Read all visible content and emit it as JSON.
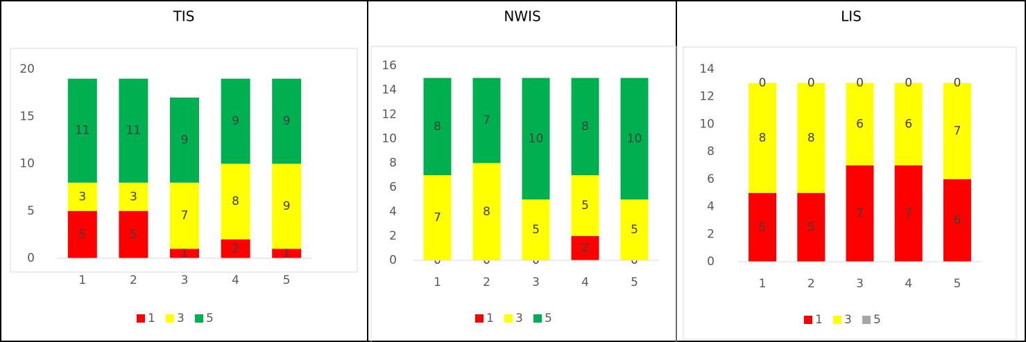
{
  "chart_data": [
    {
      "type": "bar",
      "stacked": true,
      "title": "TIS",
      "categories": [
        "1",
        "2",
        "3",
        "4",
        "5"
      ],
      "series": [
        {
          "name": "1",
          "color": "#ff0000",
          "values": [
            5,
            5,
            1,
            2,
            1
          ]
        },
        {
          "name": "3",
          "color": "#ffff00",
          "values": [
            3,
            3,
            7,
            8,
            9
          ]
        },
        {
          "name": "5",
          "color": "#00b050",
          "values": [
            11,
            11,
            9,
            9,
            9
          ]
        }
      ],
      "ylim": [
        0,
        20
      ],
      "yticks": [
        0,
        5,
        10,
        15,
        20
      ],
      "grid": false,
      "legend": "bottom"
    },
    {
      "type": "bar",
      "stacked": true,
      "title": "NWIS",
      "categories": [
        "1",
        "2",
        "3",
        "4",
        "5"
      ],
      "series": [
        {
          "name": "1",
          "color": "#ff0000",
          "values": [
            0,
            0,
            0,
            2,
            0
          ]
        },
        {
          "name": "3",
          "color": "#ffff00",
          "values": [
            7,
            8,
            5,
            5,
            5
          ]
        },
        {
          "name": "5",
          "color": "#00b050",
          "values": [
            8,
            7,
            10,
            8,
            10
          ]
        }
      ],
      "ylim": [
        0,
        16
      ],
      "yticks": [
        0,
        2,
        4,
        6,
        8,
        10,
        12,
        14,
        16
      ],
      "grid": false,
      "legend": "bottom"
    },
    {
      "type": "bar",
      "stacked": true,
      "title": "LIS",
      "categories": [
        "1",
        "2",
        "3",
        "4",
        "5"
      ],
      "series": [
        {
          "name": "1",
          "color": "#ff0000",
          "values": [
            5,
            5,
            7,
            7,
            6
          ]
        },
        {
          "name": "3",
          "color": "#ffff00",
          "values": [
            8,
            8,
            6,
            6,
            7
          ]
        },
        {
          "name": "5",
          "color": "#a5a5a5",
          "values": [
            0,
            0,
            0,
            0,
            0
          ]
        }
      ],
      "ylim": [
        0,
        14
      ],
      "yticks": [
        0,
        2,
        4,
        6,
        8,
        10,
        12,
        14
      ],
      "grid": false,
      "legend": "bottom"
    }
  ]
}
